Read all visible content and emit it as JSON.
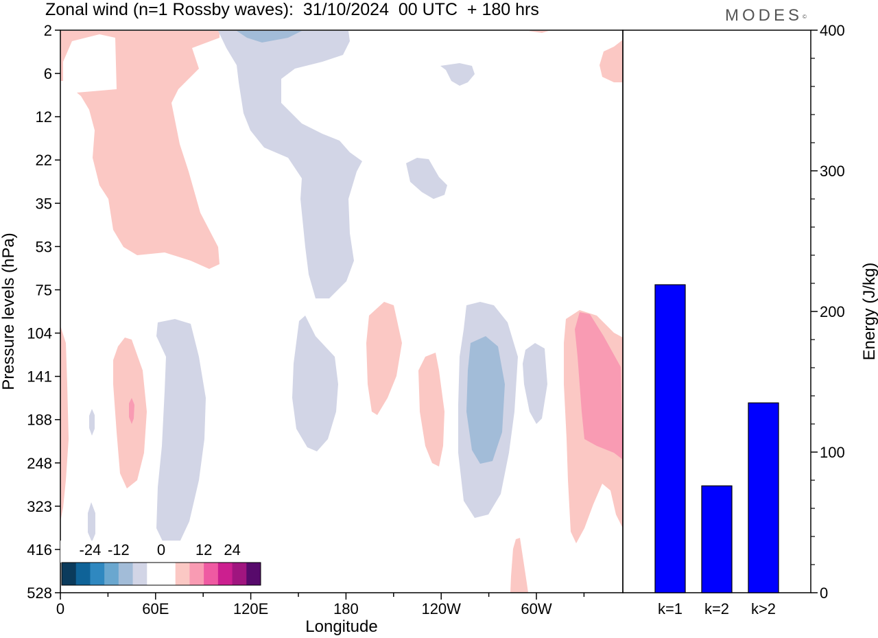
{
  "header": {
    "title": "Zonal wind (n=1 Rossby waves):  31/10/2024  00 UTC  + 180 hrs",
    "brand": "MODES",
    "brand_mark": "©"
  },
  "chart_data": [
    {
      "type": "heatmap",
      "title": "Zonal wind (n=1 Rossby waves):  31/10/2024  00 UTC  + 180 hrs",
      "xlabel": "Longitude",
      "ylabel": "Pressure levels (hPa)",
      "x_ticks": [
        "0",
        "60E",
        "120E",
        "180",
        "120W",
        "60W"
      ],
      "y_ticks": [
        "2",
        "6",
        "12",
        "22",
        "35",
        "53",
        "75",
        "104",
        "141",
        "188",
        "248",
        "323",
        "416",
        "528"
      ],
      "colorbar": {
        "tick_labels": [
          "-24",
          "-12",
          "0",
          "12",
          "24"
        ],
        "colors": [
          "#0b3b5c",
          "#0f6398",
          "#2f88c0",
          "#6aa7cf",
          "#a2bcd8",
          "#d2d5e6",
          "#ffffff",
          "#ffffff",
          "#fbc8c4",
          "#f99bb3",
          "#ef5aa2",
          "#cc1f8f",
          "#a0157f",
          "#570a6b"
        ]
      },
      "contour_colors": {
        "neg_weak": "#d2d5e6",
        "neg_mid": "#a2bcd8",
        "pos_weak": "#fbc8c4",
        "pos_mid": "#f99bb3",
        "pos_strong": "#ef5aa2"
      }
    },
    {
      "type": "bar",
      "categories": [
        "k=1",
        "k=2",
        "k>2"
      ],
      "values": [
        219,
        76,
        135
      ],
      "ylabel": "Energy (J/kg)",
      "y_ticks": [
        "0",
        "100",
        "200",
        "300",
        "400"
      ],
      "ylim": [
        0,
        400
      ],
      "bar_color": "#0000ff"
    }
  ]
}
